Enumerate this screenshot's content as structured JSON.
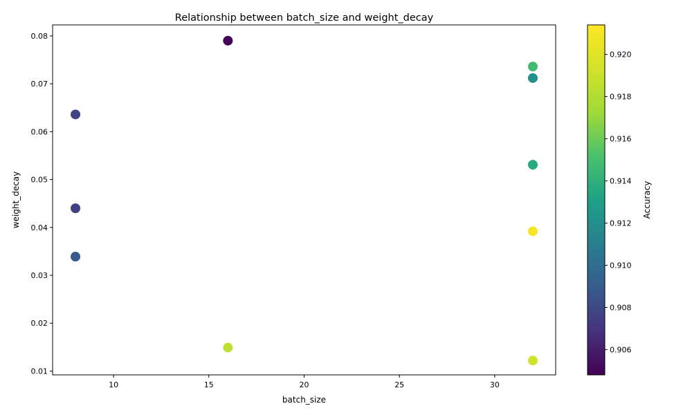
{
  "chart_data": {
    "type": "scatter",
    "title": "Relationship between batch_size and weight_decay",
    "xlabel": "batch_size",
    "ylabel": "weight_decay",
    "xlim": [
      6.8,
      33.2
    ],
    "ylim": [
      0.0092,
      0.0823
    ],
    "xticks": [
      10,
      15,
      20,
      25,
      30
    ],
    "yticks": [
      0.01,
      0.02,
      0.03,
      0.04,
      0.05,
      0.06,
      0.07,
      0.08
    ],
    "points": [
      {
        "x": 16,
        "y": 0.079,
        "accuracy": 0.9049
      },
      {
        "x": 32,
        "y": 0.0736,
        "accuracy": 0.9148
      },
      {
        "x": 32,
        "y": 0.0712,
        "accuracy": 0.912
      },
      {
        "x": 8,
        "y": 0.0636,
        "accuracy": 0.9077
      },
      {
        "x": 32,
        "y": 0.0531,
        "accuracy": 0.9136
      },
      {
        "x": 8,
        "y": 0.044,
        "accuracy": 0.9075
      },
      {
        "x": 32,
        "y": 0.0392,
        "accuracy": 0.9211
      },
      {
        "x": 8,
        "y": 0.0339,
        "accuracy": 0.9088
      },
      {
        "x": 16,
        "y": 0.0149,
        "accuracy": 0.9185
      },
      {
        "x": 32,
        "y": 0.0122,
        "accuracy": 0.9192
      }
    ],
    "colorbar": {
      "label": "Accuracy",
      "colormap": "viridis",
      "range": [
        0.9048,
        0.9214
      ],
      "ticks": [
        0.906,
        0.908,
        0.91,
        0.912,
        0.914,
        0.916,
        0.918,
        0.92
      ]
    }
  }
}
